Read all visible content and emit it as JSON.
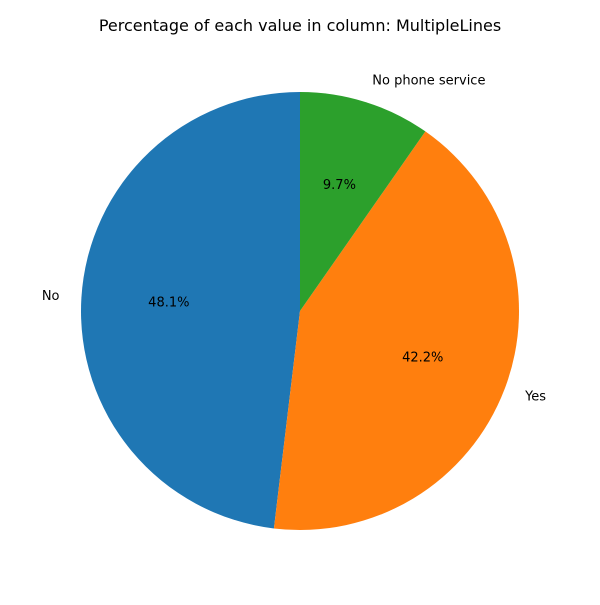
{
  "chart_data": {
    "type": "pie",
    "title": "Percentage of each value in column: MultipleLines",
    "categories": [
      "No",
      "Yes",
      "No phone service"
    ],
    "values": [
      48.1,
      42.2,
      9.7
    ],
    "value_labels": [
      "48.1%",
      "42.2%",
      "9.7%"
    ],
    "colors": [
      "#1f77b4",
      "#ff7f0e",
      "#2ca02c"
    ],
    "start_angle_deg": 90,
    "direction": "counterclockwise",
    "legend": "none"
  }
}
